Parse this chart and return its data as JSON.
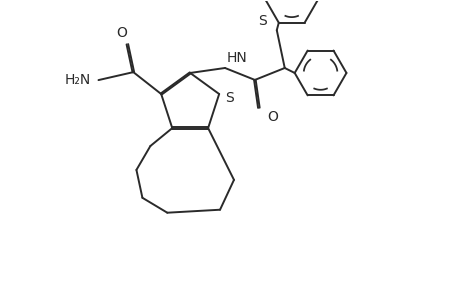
{
  "bg_color": "#ffffff",
  "line_color": "#2a2a2a",
  "line_width": 1.4,
  "dbo": 0.008,
  "figsize": [
    4.6,
    3.0
  ],
  "dpi": 100,
  "xlim": [
    0,
    4.6
  ],
  "ylim": [
    0,
    3.0
  ]
}
